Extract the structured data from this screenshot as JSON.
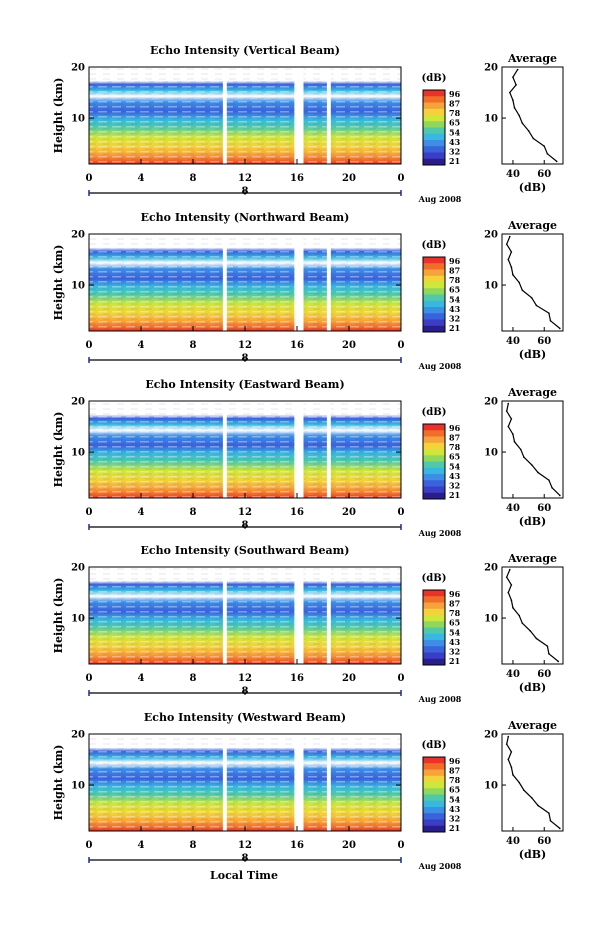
{
  "figure": {
    "xlabel_bottom": "Local Time"
  },
  "colorbar": {
    "unit": "(dB)",
    "ticks": [
      "96",
      "87",
      "78",
      "65",
      "54",
      "43",
      "32",
      "21"
    ],
    "colors": [
      "#e8322a",
      "#f26c2a",
      "#f7a23a",
      "#f3d23a",
      "#cfe63a",
      "#8fd85c",
      "#4fc9a8",
      "#38b8e0",
      "#3d8fe6",
      "#3a62dc",
      "#3a3dc6",
      "#2a1e8c"
    ]
  },
  "chart_data": [
    {
      "type": "heatmap",
      "title": "Echo Intensity (Vertical Beam)",
      "ylabel": "Height (km)",
      "x_ticks": [
        "0",
        "4",
        "8",
        "12",
        "16",
        "20",
        "0"
      ],
      "y_ticks": [
        "20",
        "10"
      ],
      "date_mark": "8",
      "date_label": "Aug 2008",
      "xlim": [
        0,
        24
      ],
      "ylim": [
        1,
        20
      ],
      "profile": {
        "title": "Average",
        "x_ticks": [
          "40",
          "60"
        ],
        "y_ticks": [
          "20",
          "10"
        ],
        "xlabel": "(dB)",
        "xlim": [
          33,
          72
        ],
        "ylim": [
          1,
          20
        ],
        "heights": [
          1.5,
          3,
          4.5,
          6,
          7.5,
          9,
          10.5,
          12,
          13.5,
          15,
          16.5,
          18,
          19.5
        ],
        "values": [
          68,
          62,
          60,
          53,
          50,
          46,
          44,
          41,
          40,
          38,
          42,
          40,
          43
        ]
      }
    },
    {
      "type": "heatmap",
      "title": "Echo Intensity (Northward Beam)",
      "ylabel": "Height (km)",
      "x_ticks": [
        "0",
        "4",
        "8",
        "12",
        "16",
        "20",
        "0"
      ],
      "y_ticks": [
        "20",
        "10"
      ],
      "date_mark": "8",
      "date_label": "Aug 2008",
      "xlim": [
        0,
        24
      ],
      "ylim": [
        1,
        20
      ],
      "profile": {
        "title": "Average",
        "x_ticks": [
          "40",
          "60"
        ],
        "y_ticks": [
          "20",
          "10"
        ],
        "xlabel": "(dB)",
        "xlim": [
          33,
          72
        ],
        "ylim": [
          1,
          20
        ],
        "heights": [
          1.5,
          3,
          4.5,
          6,
          7.5,
          9,
          10.5,
          12,
          13.5,
          15,
          16.5,
          18,
          19.5
        ],
        "values": [
          70,
          64,
          63,
          55,
          52,
          46,
          44,
          40,
          39,
          37,
          39,
          36,
          38
        ]
      }
    },
    {
      "type": "heatmap",
      "title": "Echo Intensity (Eastward Beam)",
      "ylabel": "Height (km)",
      "x_ticks": [
        "0",
        "4",
        "8",
        "12",
        "16",
        "20",
        "0"
      ],
      "y_ticks": [
        "20",
        "10"
      ],
      "date_mark": "8",
      "date_label": "Aug 2008",
      "xlim": [
        0,
        24
      ],
      "ylim": [
        1,
        20
      ],
      "profile": {
        "title": "Average",
        "x_ticks": [
          "40",
          "60"
        ],
        "y_ticks": [
          "20",
          "10"
        ],
        "xlabel": "(dB)",
        "xlim": [
          33,
          72
        ],
        "ylim": [
          1,
          20
        ],
        "heights": [
          1.5,
          3,
          4.5,
          6,
          7.5,
          9,
          10.5,
          12,
          13.5,
          15,
          16.5,
          18,
          19.5
        ],
        "values": [
          70,
          65,
          63,
          56,
          52,
          47,
          45,
          41,
          40,
          37,
          39,
          36,
          37
        ]
      }
    },
    {
      "type": "heatmap",
      "title": "Echo Intensity (Southward Beam)",
      "ylabel": "Height (km)",
      "x_ticks": [
        "0",
        "4",
        "8",
        "12",
        "16",
        "20",
        "0"
      ],
      "y_ticks": [
        "20",
        "10"
      ],
      "date_mark": "8",
      "date_label": "Aug 2008",
      "xlim": [
        0,
        24
      ],
      "ylim": [
        1,
        20
      ],
      "profile": {
        "title": "Average",
        "x_ticks": [
          "40",
          "60"
        ],
        "y_ticks": [
          "20",
          "10"
        ],
        "xlabel": "(dB)",
        "xlim": [
          33,
          72
        ],
        "ylim": [
          1,
          20
        ],
        "heights": [
          1.5,
          3,
          4.5,
          6,
          7.5,
          9,
          10.5,
          12,
          13.5,
          15,
          16.5,
          18,
          19.5
        ],
        "values": [
          69,
          63,
          62,
          55,
          51,
          46,
          44,
          40,
          39,
          37,
          39,
          36,
          38
        ]
      }
    },
    {
      "type": "heatmap",
      "title": "Echo Intensity (Westward Beam)",
      "ylabel": "Height (km)",
      "x_ticks": [
        "0",
        "4",
        "8",
        "12",
        "16",
        "20",
        "0"
      ],
      "y_ticks": [
        "20",
        "10"
      ],
      "date_mark": "8",
      "date_label": "Aug 2008",
      "xlim": [
        0,
        24
      ],
      "ylim": [
        1,
        20
      ],
      "profile": {
        "title": "Average",
        "x_ticks": [
          "40",
          "60"
        ],
        "y_ticks": [
          "20",
          "10"
        ],
        "xlabel": "(dB)",
        "xlim": [
          33,
          72
        ],
        "ylim": [
          1,
          20
        ],
        "heights": [
          1.5,
          3,
          4.5,
          6,
          7.5,
          9,
          10.5,
          12,
          13.5,
          15,
          16.5,
          18,
          19.5
        ],
        "values": [
          70,
          64,
          63,
          56,
          52,
          47,
          44,
          40,
          39,
          37,
          39,
          36,
          37
        ]
      }
    }
  ]
}
